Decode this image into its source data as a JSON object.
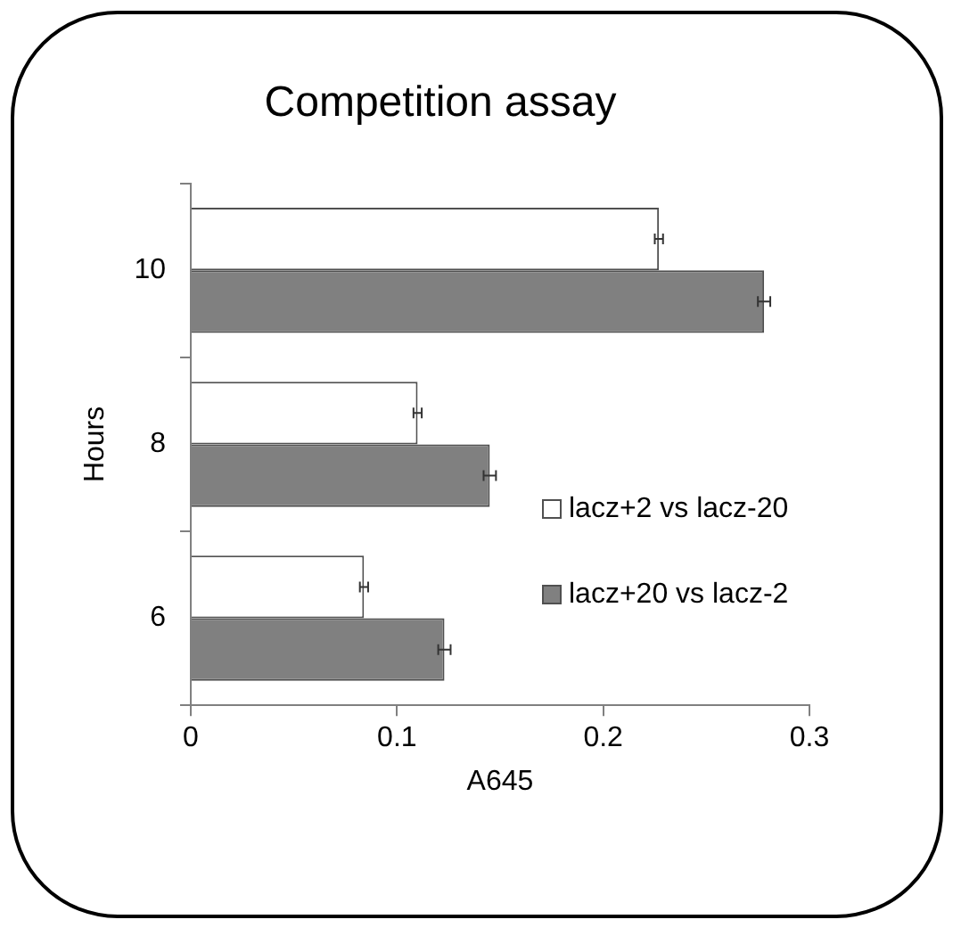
{
  "chart_data": {
    "type": "bar",
    "orientation": "horizontal",
    "title": "Competition assay",
    "xlabel": "A645",
    "ylabel": "Hours",
    "categories": [
      "10",
      "8",
      "6"
    ],
    "series": [
      {
        "name": "lacz+2 vs lacz-20",
        "color": "#ffffff",
        "values": [
          0.227,
          0.11,
          0.084
        ],
        "errors": [
          0.002,
          0.002,
          0.002
        ]
      },
      {
        "name": "lacz+20 vs lacz-2",
        "color": "#808080",
        "values": [
          0.278,
          0.145,
          0.123
        ],
        "errors": [
          0.003,
          0.003,
          0.003
        ]
      }
    ],
    "xlim": [
      0,
      0.3
    ],
    "xticks": [
      0,
      0.1,
      0.2,
      0.3
    ],
    "grid": false,
    "legend": "bottom right"
  }
}
